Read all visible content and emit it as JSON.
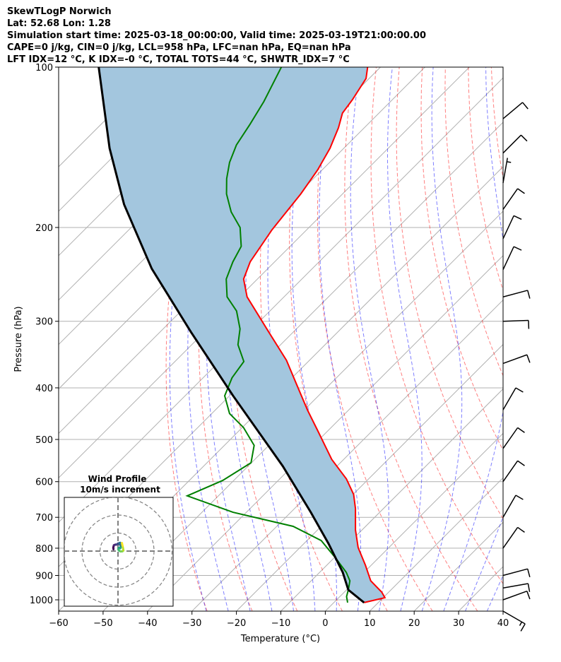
{
  "header": {
    "line1": "SkewTLogP Norwich",
    "line2": "Lat: 52.68   Lon: 1.28",
    "line3": "Simulation start time: 2025-03-18_00:00:00, Valid time: 2025-03-19T21:00:00.00",
    "line4": "CAPE=0 j/kg, CIN=0 j/kg, LCL=958 hPa, LFC=nan hPa, EQ=nan hPa",
    "line5": "LFT IDX=12 °C, K IDX=-0 °C, TOTAL TOTS=44 °C, SHWTR_IDX=7 °C"
  },
  "chart_data": {
    "type": "line",
    "title": "SkewTLogP Norwich",
    "xlabel": "Temperature (°C)",
    "ylabel": "Pressure (hPa)",
    "xlim": [
      -60,
      40
    ],
    "ylim": [
      1050,
      100
    ],
    "xticks": [
      "−60",
      "−50",
      "−40",
      "−30",
      "−20",
      "−10",
      "0",
      "10",
      "20",
      "30",
      "40"
    ],
    "xtick_values": [
      -60,
      -50,
      -40,
      -30,
      -20,
      -10,
      0,
      10,
      20,
      30,
      40
    ],
    "yticks": [
      "100",
      "200",
      "300",
      "400",
      "500",
      "600",
      "700",
      "800",
      "900",
      "1000"
    ],
    "ytick_values": [
      100,
      200,
      300,
      400,
      500,
      600,
      700,
      800,
      900,
      1000
    ],
    "colors": {
      "temperature": "#ff0000",
      "dewpoint": "#008000",
      "parcel": "#000000",
      "cape_fill": "#a3c6de",
      "isotherm": "#b0b0b0",
      "dry_adiabat": "#ff0000",
      "moist_adiabat": "#0000ff"
    },
    "series": [
      {
        "name": "Temperature",
        "p": [
          1012,
          991,
          967,
          921,
          861,
          798,
          739,
          674,
          634,
          593,
          545,
          482,
          440,
          395,
          355,
          314,
          270,
          250,
          232,
          202,
          173,
          156,
          142,
          130,
          122,
          115,
          105,
          100
        ],
        "T": [
          6.8,
          10.4,
          8.4,
          3.4,
          -1.3,
          -6.9,
          -11.5,
          -16.3,
          -19.9,
          -25.0,
          -32.7,
          -42.2,
          -49.3,
          -57.3,
          -65.2,
          -75.6,
          -88.3,
          -93.1,
          -95.5,
          -97.8,
          -99.4,
          -101.0,
          -103.1,
          -105.8,
          -108.2,
          -109.0,
          -110.7,
          -112.9
        ]
      },
      {
        "name": "Dewpoint",
        "p": [
          1012,
          986,
          958,
          921,
          888,
          835,
          774,
          728,
          685,
          638,
          597,
          553,
          513,
          475,
          447,
          414,
          383,
          357,
          332,
          310,
          287,
          270,
          250,
          232,
          217,
          200,
          187,
          173,
          162,
          151,
          140,
          128,
          116,
          100
        ],
        "T": [
          3.1,
          1.5,
          0.4,
          -1.3,
          -4.0,
          -9.6,
          -16.8,
          -26.3,
          -43.0,
          -57.0,
          -52.5,
          -50.1,
          -53.3,
          -59.7,
          -66.0,
          -71.1,
          -73.5,
          -74.5,
          -79.6,
          -82.7,
          -87.5,
          -92.8,
          -97.0,
          -99.4,
          -101.0,
          -105.5,
          -111.0,
          -116.1,
          -119.5,
          -122.5,
          -124.9,
          -126.5,
          -128.5,
          -132.3
        ]
      },
      {
        "name": "Parcel",
        "p": [
          1012,
          958,
          888,
          785,
          685,
          561,
          414,
          314,
          239,
          181,
          142,
          100
        ],
        "T": [
          6.8,
          0.4,
          -4.8,
          -14.4,
          -25.5,
          -42.2,
          -69.2,
          -93.1,
          -116.1,
          -136.8,
          -152.7,
          -173.4
        ]
      }
    ],
    "wind_barbs": [
      {
        "p": 1050,
        "speed_kt": 15,
        "dir": 300
      },
      {
        "p": 1000,
        "speed_kt": 10,
        "dir": 250
      },
      {
        "p": 950,
        "speed_kt": 10,
        "dir": 260
      },
      {
        "p": 900,
        "speed_kt": 10,
        "dir": 255
      },
      {
        "p": 800,
        "speed_kt": 10,
        "dir": 215
      },
      {
        "p": 700,
        "speed_kt": 10,
        "dir": 210
      },
      {
        "p": 600,
        "speed_kt": 10,
        "dir": 215
      },
      {
        "p": 520,
        "speed_kt": 10,
        "dir": 215
      },
      {
        "p": 440,
        "speed_kt": 10,
        "dir": 210
      },
      {
        "p": 360,
        "speed_kt": 10,
        "dir": 250
      },
      {
        "p": 300,
        "speed_kt": 10,
        "dir": 268
      },
      {
        "p": 270,
        "speed_kt": 10,
        "dir": 255
      },
      {
        "p": 240,
        "speed_kt": 10,
        "dir": 205
      },
      {
        "p": 210,
        "speed_kt": 10,
        "dir": 205
      },
      {
        "p": 185,
        "speed_kt": 10,
        "dir": 215
      },
      {
        "p": 165,
        "speed_kt": 5,
        "dir": 190
      },
      {
        "p": 145,
        "speed_kt": 10,
        "dir": 225
      },
      {
        "p": 125,
        "speed_kt": 10,
        "dir": 230
      }
    ],
    "hodograph": {
      "title": "Wind Profile",
      "subtitle": "10m/s increment",
      "rings_ms": [
        10,
        20,
        30
      ],
      "u": [
        -2.5,
        -2.6,
        -2.3,
        -1.5,
        -0.8,
        0,
        0.5,
        0.8,
        1.2,
        1.4,
        1.5,
        1.3,
        0.5,
        0.2,
        0.8,
        1.5,
        2.5,
        3.0,
        2.8,
        2.5,
        2.2
      ],
      "v": [
        1.0,
        2.0,
        3.2,
        3.6,
        3.6,
        4.2,
        3.8,
        4.5,
        4.6,
        3.5,
        2.2,
        1.6,
        1.8,
        0.8,
        0.1,
        -0.2,
        -0.1,
        0.3,
        1.5,
        3.0,
        4.5
      ]
    }
  }
}
